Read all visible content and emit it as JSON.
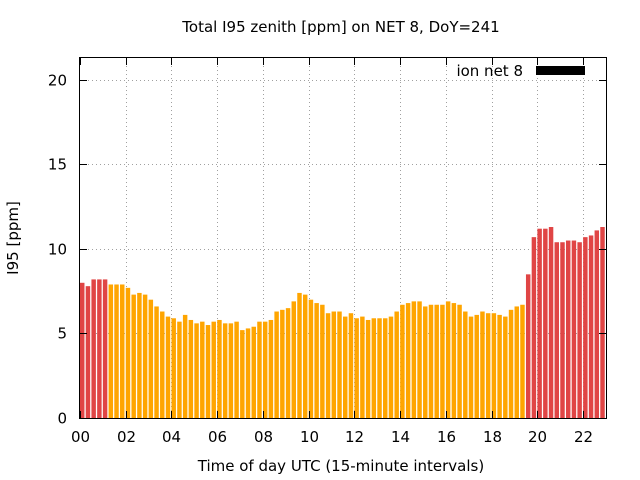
{
  "chart_data": {
    "type": "bar",
    "title": "Total I95 zenith [ppm] on NET 8, DoY=241",
    "xlabel": "Time of day UTC (15-minute intervals)",
    "ylabel": "I95 [ppm]",
    "ylim": [
      0,
      21.3
    ],
    "xlim": [
      0,
      23
    ],
    "yticks": [
      0,
      5,
      10,
      15,
      20
    ],
    "xticks": [
      0,
      2,
      4,
      6,
      8,
      10,
      12,
      14,
      16,
      18,
      20,
      22
    ],
    "xtick_labels": [
      "00",
      "02",
      "04",
      "06",
      "08",
      "10",
      "12",
      "14",
      "16",
      "18",
      "20",
      "22"
    ],
    "bar_interval_hours": 0.25,
    "grid": true,
    "legend_position": "top-right",
    "colors": {
      "normal": "#ffa500",
      "high": "#e04545",
      "legend": "#000000",
      "grid": "#a0a0a0"
    },
    "series": [
      {
        "name": "ion net 8",
        "x": [
          0.0,
          0.25,
          0.5,
          0.75,
          1.0,
          1.25,
          1.5,
          1.75,
          2.0,
          2.25,
          2.5,
          2.75,
          3.0,
          3.25,
          3.5,
          3.75,
          4.0,
          4.25,
          4.5,
          4.75,
          5.0,
          5.25,
          5.5,
          5.75,
          6.0,
          6.25,
          6.5,
          6.75,
          7.0,
          7.25,
          7.5,
          7.75,
          8.0,
          8.25,
          8.5,
          8.75,
          9.0,
          9.25,
          9.5,
          9.75,
          10.0,
          10.25,
          10.5,
          10.75,
          11.0,
          11.25,
          11.5,
          11.75,
          12.0,
          12.25,
          12.5,
          12.75,
          13.0,
          13.25,
          13.5,
          13.75,
          14.0,
          14.25,
          14.5,
          14.75,
          15.0,
          15.25,
          15.5,
          15.75,
          16.0,
          16.25,
          16.5,
          16.75,
          17.0,
          17.25,
          17.5,
          17.75,
          18.0,
          18.25,
          18.5,
          18.75,
          19.0,
          19.25,
          19.5,
          19.75,
          20.0,
          20.25,
          20.5,
          20.75,
          21.0,
          21.25,
          21.5,
          21.75,
          22.0,
          22.25,
          22.5,
          22.75
        ],
        "values": [
          8.0,
          7.8,
          8.2,
          8.2,
          8.2,
          7.9,
          7.9,
          7.9,
          7.7,
          7.3,
          7.4,
          7.3,
          7.0,
          6.6,
          6.3,
          6.0,
          5.9,
          5.7,
          6.1,
          5.8,
          5.6,
          5.7,
          5.5,
          5.7,
          5.8,
          5.6,
          5.6,
          5.7,
          5.2,
          5.3,
          5.4,
          5.7,
          5.7,
          5.8,
          6.3,
          6.4,
          6.5,
          6.9,
          7.4,
          7.3,
          7.0,
          6.8,
          6.7,
          6.2,
          6.3,
          6.3,
          6.0,
          6.2,
          5.9,
          6.0,
          5.8,
          5.9,
          5.9,
          5.9,
          6.0,
          6.3,
          6.7,
          6.8,
          6.9,
          6.9,
          6.6,
          6.7,
          6.7,
          6.7,
          6.9,
          6.8,
          6.7,
          6.3,
          6.0,
          6.1,
          6.3,
          6.2,
          6.2,
          6.1,
          6.0,
          6.4,
          6.6,
          6.7,
          8.5,
          10.7,
          11.2,
          11.2,
          11.3,
          10.4,
          10.4,
          10.5,
          10.5,
          10.4,
          10.7,
          10.8,
          11.1,
          11.3
        ],
        "level": [
          "high",
          "high",
          "high",
          "high",
          "high",
          "normal",
          "normal",
          "normal",
          "normal",
          "normal",
          "normal",
          "normal",
          "normal",
          "normal",
          "normal",
          "normal",
          "normal",
          "normal",
          "normal",
          "normal",
          "normal",
          "normal",
          "normal",
          "normal",
          "normal",
          "normal",
          "normal",
          "normal",
          "normal",
          "normal",
          "normal",
          "normal",
          "normal",
          "normal",
          "normal",
          "normal",
          "normal",
          "normal",
          "normal",
          "normal",
          "normal",
          "normal",
          "normal",
          "normal",
          "normal",
          "normal",
          "normal",
          "normal",
          "normal",
          "normal",
          "normal",
          "normal",
          "normal",
          "normal",
          "normal",
          "normal",
          "normal",
          "normal",
          "normal",
          "normal",
          "normal",
          "normal",
          "normal",
          "normal",
          "normal",
          "normal",
          "normal",
          "normal",
          "normal",
          "normal",
          "normal",
          "normal",
          "normal",
          "normal",
          "normal",
          "normal",
          "normal",
          "normal",
          "high",
          "high",
          "high",
          "high",
          "high",
          "high",
          "high",
          "high",
          "high",
          "high",
          "high",
          "high",
          "high",
          "high"
        ]
      }
    ]
  }
}
